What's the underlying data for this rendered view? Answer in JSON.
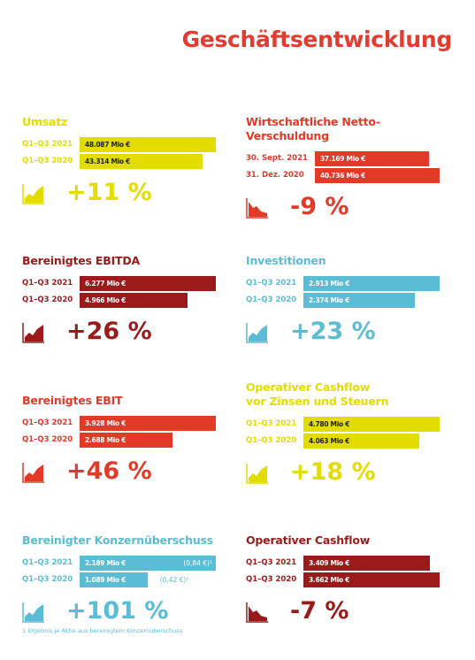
{
  "title": "Geschäftsentwicklung",
  "chart_data": [
    {
      "type": "bar",
      "orientation": "horizontal",
      "title": "Umsatz",
      "categories": [
        "Q1–Q3 2021",
        "Q1–Q3 2020"
      ],
      "values": [
        48087,
        43314
      ],
      "value_labels": [
        "48.087 Mio €",
        "43.314 Mio €"
      ],
      "color": "#e3dc00",
      "change": "+11 %"
    },
    {
      "type": "bar",
      "orientation": "horizontal",
      "title": "Wirtschaftliche Netto-Verschuldung",
      "categories": [
        "30. Sept. 2021",
        "31. Dez. 2020"
      ],
      "values": [
        37169,
        40736
      ],
      "value_labels": [
        "37.169 Mio €",
        "40.736 Mio €"
      ],
      "color": "#e23a27",
      "change": "-9 %"
    },
    {
      "type": "bar",
      "orientation": "horizontal",
      "title": "Bereinigtes EBITDA",
      "categories": [
        "Q1–Q3 2021",
        "Q1–Q3 2020"
      ],
      "values": [
        6277,
        4966
      ],
      "value_labels": [
        "6.277 Mio €",
        "4.966 Mio €"
      ],
      "color": "#9b1b1b",
      "change": "+26 %"
    },
    {
      "type": "bar",
      "orientation": "horizontal",
      "title": "Investitionen",
      "categories": [
        "Q1–Q3 2021",
        "Q1–Q3 2020"
      ],
      "values": [
        2913,
        2374
      ],
      "value_labels": [
        "2.913 Mio €",
        "2.374 Mio €"
      ],
      "color": "#5bbcd6",
      "change": "+23 %"
    },
    {
      "type": "bar",
      "orientation": "horizontal",
      "title": "Bereinigtes EBIT",
      "categories": [
        "Q1–Q3 2021",
        "Q1–Q3 2020"
      ],
      "values": [
        3928,
        2688
      ],
      "value_labels": [
        "3.928 Mio €",
        "2.688 Mio €"
      ],
      "color": "#e23a27",
      "change": "+46 %"
    },
    {
      "type": "bar",
      "orientation": "horizontal",
      "title": [
        "Operativer Cashflow",
        "vor Zinsen und Steuern"
      ],
      "categories": [
        "Q1–Q3 2021",
        "Q1–Q3 2020"
      ],
      "values": [
        4780,
        4063
      ],
      "value_labels": [
        "4.780 Mio €",
        "4.063 Mio €"
      ],
      "color": "#e3dc00",
      "change": "+18 %"
    },
    {
      "type": "bar",
      "orientation": "horizontal",
      "title": "Bereinigter Konzernüberschuss",
      "categories": [
        "Q1–Q3 2021",
        "Q1–Q3 2020"
      ],
      "values": [
        2189,
        1089
      ],
      "value_labels": [
        "2.189 Mio €",
        "1.089 Mio €"
      ],
      "annotations": [
        "(0,84 €)¹",
        "(0,42 €)¹"
      ],
      "color": "#5bbcd6",
      "change": "+101 %"
    },
    {
      "type": "bar",
      "orientation": "horizontal",
      "title": "Operativer Cashflow",
      "categories": [
        "Q1–Q3 2021",
        "Q1–Q3 2020"
      ],
      "values": [
        3409,
        3662
      ],
      "value_labels": [
        "3.409 Mio €",
        "3.662 Mio €"
      ],
      "color": "#9b1b1b",
      "change": "-7 %"
    }
  ],
  "footnote": "1 Ergebnis je Aktie aus bereinigtem Konzernüberschuss"
}
